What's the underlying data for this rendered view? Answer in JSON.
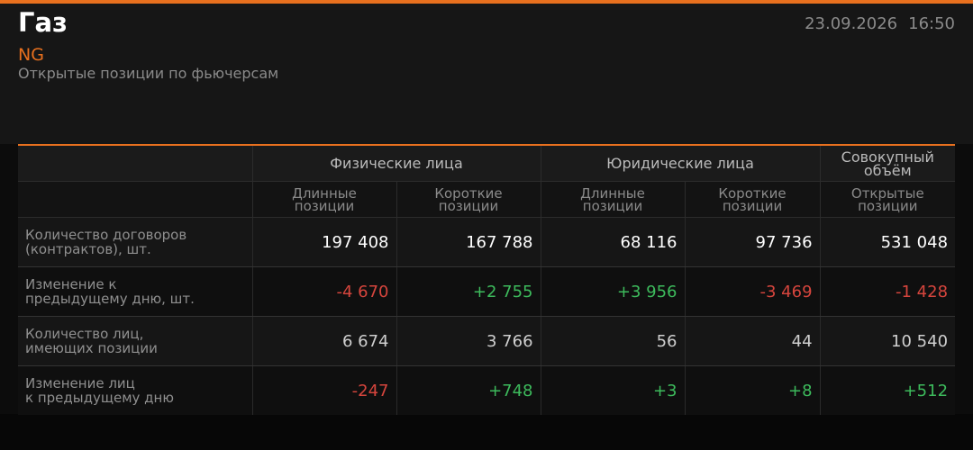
{
  "header": {
    "title": "Газ",
    "ticker": "NG",
    "subtitle": "Открытые позиции по фьючерсам",
    "date": "23.09.2026",
    "time": "16:50"
  },
  "table": {
    "groups": [
      "Физические лица",
      "Юридические лица",
      "Совокупный\nобъём"
    ],
    "columns": [
      "Длинные\nпозиции",
      "Короткие\nпозиции",
      "Длинные\nпозиции",
      "Короткие\nпозиции",
      "Открытые\nпозиции"
    ],
    "rows": [
      {
        "label": "Количество договоров\n(контрактов), шт.",
        "values": [
          "197 408",
          "167 788",
          "68 116",
          "97 736",
          "531 048"
        ]
      },
      {
        "label": "Изменение к\nпредыдущему дню, шт.",
        "values": [
          "-4 670",
          "+2 755",
          "+3 956",
          "-3 469",
          "-1 428"
        ]
      },
      {
        "label": "Количество лиц,\nимеющих позиции",
        "values": [
          "6 674",
          "3 766",
          "56",
          "44",
          "10 540"
        ]
      },
      {
        "label": "Изменение лиц\nк предыдущему дню",
        "values": [
          "-247",
          "+748",
          "+3",
          "+8",
          "+512"
        ]
      }
    ]
  }
}
